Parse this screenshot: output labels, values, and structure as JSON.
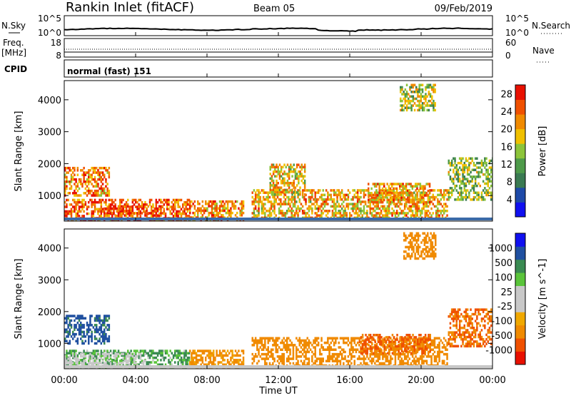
{
  "header": {
    "title": "Rankin Inlet (fitACF)",
    "beam": "Beam 05",
    "date": "09/Feb/2019"
  },
  "top_strips": {
    "nsky_label": "N.Sky",
    "nsearch_label": "N.Search",
    "left_ticks": [
      "10^5",
      "10^0"
    ],
    "right_ticks": [
      "10^5",
      "10^0"
    ],
    "freq_label": "Freq.",
    "freq_unit": "[MHz]",
    "freq_ticks": [
      "18",
      "8"
    ],
    "nave_label": "Nave",
    "nave_ticks": [
      "60",
      "0"
    ],
    "cpid_label": "CPID",
    "cpid_text": "normal (fast) 151"
  },
  "time_axis": {
    "labels": [
      "00:00",
      "04:00",
      "08:00",
      "12:00",
      "16:00",
      "20:00",
      "00:00"
    ],
    "title": "Time UT"
  },
  "colors": {
    "power_scale": [
      "#1010f0",
      "#1e4aa8",
      "#3a7a52",
      "#4e9a4a",
      "#8cc43a",
      "#f0c000",
      "#f08a00",
      "#f05000",
      "#e81000"
    ],
    "velocity_scale": [
      "#e81000",
      "#f05000",
      "#f08a00",
      "#f0a800",
      "#c8c8c8",
      "#c8c8c8",
      "#5ac43a",
      "#3a8a52",
      "#2050a0",
      "#1010f0"
    ],
    "ground_scatter": "#c8c8c8"
  },
  "chart_data": [
    {
      "type": "heatmap",
      "name": "Power",
      "ylabel": "Slant Range [km]",
      "xlabel": "",
      "y_ticks": [
        "1000",
        "2000",
        "3000",
        "4000"
      ],
      "ylim": [
        200,
        4600
      ],
      "xlim_hours": [
        0,
        24
      ],
      "colorbar_label": "Power [dB]",
      "colorbar_ticks": [
        "4",
        "8",
        "12",
        "16",
        "20",
        "24",
        "28"
      ],
      "colorbar_range": [
        0,
        30
      ],
      "regions": [
        {
          "t0": 0.0,
          "t1": 7.0,
          "r0": 250,
          "r1": 900,
          "v": 24
        },
        {
          "t0": 0.0,
          "t1": 2.5,
          "r0": 1000,
          "r1": 1900,
          "v": 22
        },
        {
          "t0": 2.2,
          "t1": 5.5,
          "r0": 350,
          "r1": 700,
          "v": 26
        },
        {
          "t0": 7.0,
          "t1": 10.0,
          "r0": 250,
          "r1": 850,
          "v": 22
        },
        {
          "t0": 10.5,
          "t1": 21.5,
          "r0": 300,
          "r1": 1200,
          "v": 20
        },
        {
          "t0": 11.5,
          "t1": 13.5,
          "r0": 1000,
          "r1": 2000,
          "v": 18
        },
        {
          "t0": 17.0,
          "t1": 20.5,
          "r0": 800,
          "r1": 1400,
          "v": 21
        },
        {
          "t0": 21.5,
          "t1": 24.0,
          "r0": 900,
          "r1": 2200,
          "v": 14
        },
        {
          "t0": 18.8,
          "t1": 20.8,
          "r0": 3700,
          "r1": 4500,
          "v": 16
        }
      ]
    },
    {
      "type": "heatmap",
      "name": "Velocity",
      "ylabel": "Slant Range [km]",
      "xlabel": "Time UT",
      "y_ticks": [
        "1000",
        "2000",
        "3000",
        "4000"
      ],
      "ylim": [
        200,
        4600
      ],
      "xlim_hours": [
        0,
        24
      ],
      "colorbar_label": "Velocity [m s^-1]",
      "colorbar_ticks": [
        "1000",
        "500",
        "100",
        "25",
        "-25",
        "-100",
        "-500",
        "-1000"
      ],
      "regions": [
        {
          "t0": 0.0,
          "t1": 7.0,
          "r0": 250,
          "r1": 800,
          "v": 60
        },
        {
          "t0": 0.0,
          "t1": 4.5,
          "r0": 250,
          "r1": 700,
          "v": 0
        },
        {
          "t0": 0.0,
          "t1": 2.5,
          "r0": 1000,
          "r1": 1900,
          "v": 150
        },
        {
          "t0": 7.0,
          "t1": 10.0,
          "r0": 250,
          "r1": 800,
          "v": -150
        },
        {
          "t0": 10.5,
          "t1": 21.5,
          "r0": 300,
          "r1": 1200,
          "v": -200
        },
        {
          "t0": 16.5,
          "t1": 20.5,
          "r0": 700,
          "r1": 1300,
          "v": -600
        },
        {
          "t0": 21.5,
          "t1": 24.0,
          "r0": 900,
          "r1": 2100,
          "v": -500
        },
        {
          "t0": 19.0,
          "t1": 20.8,
          "r0": 3700,
          "r1": 4500,
          "v": -300
        }
      ]
    }
  ]
}
